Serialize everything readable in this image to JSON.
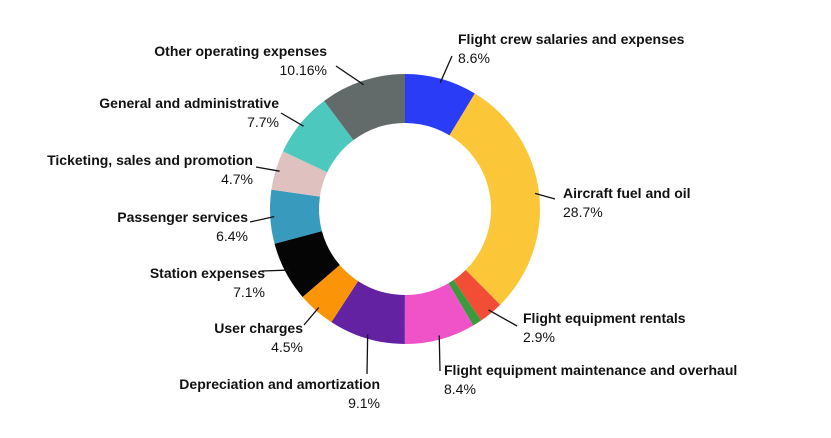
{
  "chart_data": {
    "type": "pie",
    "variant": "donut",
    "title": "",
    "slices": [
      {
        "label": "Flight crew salaries and expenses",
        "value_label": "8.6%",
        "value": 8.6,
        "color": "#2a3cf5"
      },
      {
        "label": "Aircraft fuel and oil",
        "value_label": "28.7%",
        "value": 28.7,
        "color": "#fbc637"
      },
      {
        "label": "Flight equipment rentals",
        "value_label": "2.9%",
        "value": 2.9,
        "color": "#f24e36"
      },
      {
        "label": "",
        "value_label": "",
        "value": 1.1,
        "color": "#3a9b3c"
      },
      {
        "label": "Flight equipment maintenance and overhaul",
        "value_label": "8.4%",
        "value": 8.4,
        "color": "#f052c8"
      },
      {
        "label": "Depreciation and amortization",
        "value_label": "9.1%",
        "value": 9.1,
        "color": "#6222a2"
      },
      {
        "label": "User charges",
        "value_label": "4.5%",
        "value": 4.5,
        "color": "#fb9507"
      },
      {
        "label": "Station expenses",
        "value_label": "7.1%",
        "value": 7.1,
        "color": "#050505"
      },
      {
        "label": "Passenger services",
        "value_label": "6.4%",
        "value": 6.4,
        "color": "#389bbd"
      },
      {
        "label": "Ticketing, sales and promotion",
        "value_label": "4.7%",
        "value": 4.7,
        "color": "#dfc2c0"
      },
      {
        "label": "General and administrative",
        "value_label": "7.7%",
        "value": 7.7,
        "color": "#4dc8bf"
      },
      {
        "label": "Other operating expenses",
        "value_label": "10.16%",
        "value": 10.16,
        "color": "#636a6a"
      }
    ]
  }
}
